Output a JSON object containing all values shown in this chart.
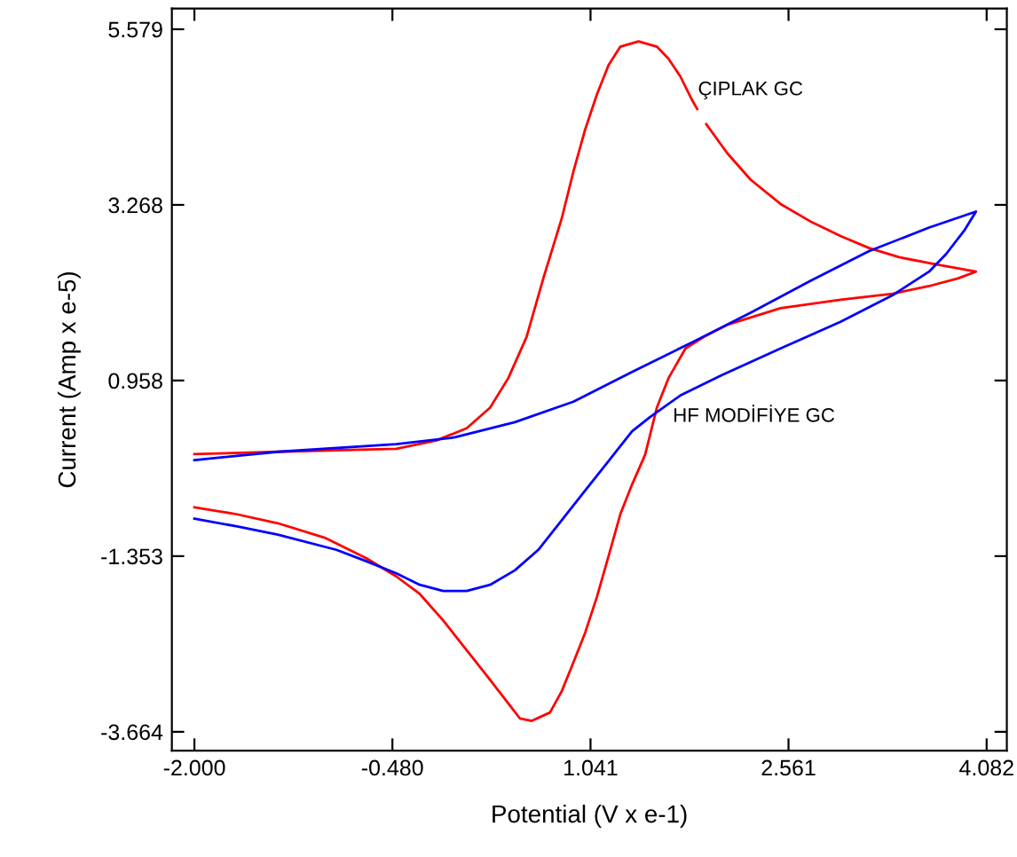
{
  "chart_data": {
    "type": "line",
    "xlabel": "Potential (V x e-1)",
    "ylabel": "Current (Amp x e-5)",
    "xlim": [
      -2.173,
      4.237
    ],
    "ylim": [
      -3.913,
      5.851
    ],
    "xticks": [
      {
        "value": -2.0,
        "label": "-2.000"
      },
      {
        "value": -0.48,
        "label": "-0.480"
      },
      1.041,
      2.561,
      4.082
    ],
    "yticks": [
      {
        "value": -3.664,
        "label": "-3.664"
      },
      {
        "value": -1.353,
        "label": "-1.353"
      },
      0.958,
      3.268,
      5.579
    ],
    "grid": false,
    "marker": "none",
    "line_style": "solid",
    "series": [
      {
        "name": "ÇIPLAK GC",
        "color": "#ff0000",
        "x": [
          -2.0,
          -1.36,
          -0.45,
          -0.14,
          0.09,
          0.27,
          0.41,
          0.55,
          0.68,
          0.82,
          0.91,
          1.0,
          1.09,
          1.18,
          1.27,
          1.41,
          1.55,
          1.64,
          1.73,
          1.82,
          1.86,
          1.9,
          1.93,
          2.09,
          2.27,
          2.5,
          2.73,
          2.96,
          3.18,
          3.41,
          3.68,
          4.0,
          3.86,
          3.64,
          3.36,
          2.96,
          2.5,
          2.09,
          1.91,
          1.77,
          1.64,
          1.55,
          1.46,
          1.36,
          1.27,
          1.18,
          1.09,
          1.0,
          0.91,
          0.82,
          0.73,
          0.59,
          0.5,
          0.41,
          0.27,
          0.09,
          -0.09,
          -0.27,
          -0.45,
          -0.68,
          -1.0,
          -1.36,
          -1.68,
          -2.0
        ],
        "values": [
          -0.01,
          0.02,
          0.06,
          0.17,
          0.33,
          0.6,
          0.99,
          1.53,
          2.31,
          3.09,
          3.71,
          4.26,
          4.72,
          5.11,
          5.35,
          5.42,
          5.35,
          5.19,
          4.96,
          4.65,
          4.53,
          null,
          4.33,
          3.95,
          3.6,
          3.28,
          3.05,
          2.86,
          2.7,
          2.58,
          2.49,
          2.39,
          2.3,
          2.2,
          2.1,
          2.02,
          1.91,
          1.69,
          1.53,
          1.38,
          0.99,
          0.6,
          -0.02,
          -0.41,
          -0.8,
          -1.35,
          -1.89,
          -2.36,
          -2.75,
          -3.13,
          -3.41,
          -3.52,
          -3.49,
          -3.29,
          -2.98,
          -2.59,
          -2.2,
          -1.85,
          -1.62,
          -1.38,
          -1.11,
          -0.92,
          -0.8,
          -0.71
        ]
      },
      {
        "name": "HF MODİFİYE GC",
        "color": "#0000ff",
        "x": [
          -2.0,
          -1.36,
          -0.45,
          0.0,
          0.46,
          0.91,
          1.36,
          1.82,
          2.27,
          2.73,
          3.18,
          3.64,
          4.0,
          3.91,
          3.77,
          3.64,
          3.36,
          2.96,
          2.5,
          2.05,
          1.73,
          1.5,
          1.36,
          1.18,
          1.0,
          0.82,
          0.64,
          0.46,
          0.27,
          0.09,
          -0.09,
          -0.27,
          -0.45,
          -0.68,
          -0.91,
          -1.36,
          -1.68,
          -2.0
        ],
        "values": [
          -0.09,
          0.02,
          0.12,
          0.21,
          0.41,
          0.68,
          1.07,
          1.46,
          1.85,
          2.27,
          2.66,
          2.97,
          3.18,
          2.93,
          2.62,
          2.39,
          2.08,
          1.73,
          1.38,
          1.03,
          0.76,
          0.48,
          0.29,
          -0.1,
          -0.49,
          -0.88,
          -1.27,
          -1.54,
          -1.73,
          -1.81,
          -1.81,
          -1.73,
          -1.58,
          -1.42,
          -1.27,
          -1.07,
          -0.96,
          -0.86
        ]
      }
    ]
  }
}
